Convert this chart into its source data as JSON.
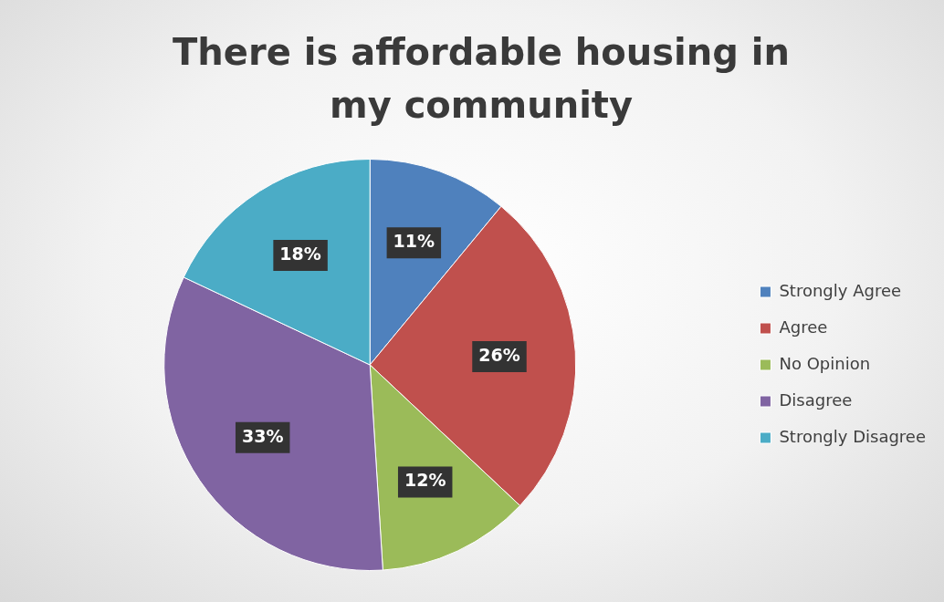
{
  "chart_data": {
    "type": "pie",
    "title": "There is affordable housing in my community",
    "categories": [
      "Strongly Agree",
      "Agree",
      "No Opinion",
      "Disagree",
      "Strongly Disagree"
    ],
    "values": [
      11,
      26,
      12,
      33,
      18
    ],
    "colors": [
      "#4f81bd",
      "#c0504d",
      "#9bbb59",
      "#8064a2",
      "#4bacc6"
    ],
    "value_labels": [
      "11%",
      "26%",
      "12%",
      "33%",
      "18%"
    ],
    "legend": "right"
  }
}
